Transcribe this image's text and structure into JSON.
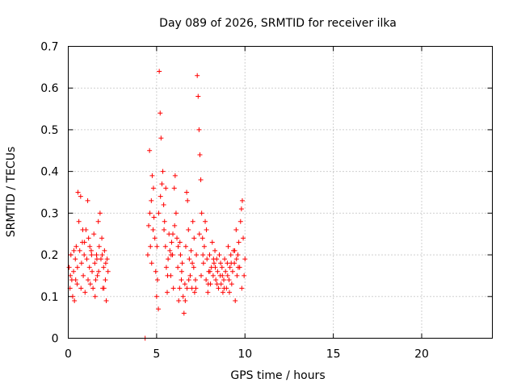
{
  "chart_data": {
    "type": "scatter",
    "title": "Day 089 of 2026, SRMTID for receiver ilka",
    "xlabel": "GPS time / hours",
    "ylabel": "SRMTID / TECUs",
    "xlim": [
      0,
      24
    ],
    "ylim": [
      0,
      0.7
    ],
    "x_ticks": [
      0,
      5,
      10,
      15,
      20
    ],
    "x_tick_labels": [
      "0",
      "5",
      "10",
      "15",
      "20"
    ],
    "y_ticks": [
      0,
      0.1,
      0.2,
      0.3,
      0.4,
      0.5,
      0.6,
      0.7
    ],
    "y_tick_labels": [
      "0",
      "0.1",
      "0.2",
      "0.3",
      "0.4",
      "0.5",
      "0.6",
      "0.7"
    ],
    "grid": true,
    "marker": "+",
    "color": "#ff0000",
    "series": [
      {
        "name": "SRMTID",
        "points": [
          [
            0.05,
            0.17
          ],
          [
            0.1,
            0.12
          ],
          [
            0.15,
            0.2
          ],
          [
            0.2,
            0.14
          ],
          [
            0.25,
            0.1
          ],
          [
            0.3,
            0.16
          ],
          [
            0.35,
            0.09
          ],
          [
            0.4,
            0.19
          ],
          [
            0.45,
            0.22
          ],
          [
            0.5,
            0.13
          ],
          [
            0.55,
            0.35
          ],
          [
            0.6,
            0.28
          ],
          [
            0.65,
            0.21
          ],
          [
            0.7,
            0.34
          ],
          [
            0.75,
            0.18
          ],
          [
            0.8,
            0.23
          ],
          [
            0.85,
            0.15
          ],
          [
            0.9,
            0.2
          ],
          [
            0.95,
            0.11
          ],
          [
            1.0,
            0.26
          ],
          [
            1.05,
            0.19
          ],
          [
            1.1,
            0.33
          ],
          [
            1.15,
            0.24
          ],
          [
            1.2,
            0.17
          ],
          [
            1.25,
            0.13
          ],
          [
            1.3,
            0.21
          ],
          [
            1.35,
            0.16
          ],
          [
            1.4,
            0.12
          ],
          [
            1.45,
            0.25
          ],
          [
            1.5,
            0.18
          ],
          [
            1.55,
            0.14
          ],
          [
            1.6,
            0.2
          ],
          [
            1.65,
            0.15
          ],
          [
            1.7,
            0.28
          ],
          [
            1.75,
            0.22
          ],
          [
            1.8,
            0.3
          ],
          [
            1.85,
            0.19
          ],
          [
            1.9,
            0.24
          ],
          [
            1.95,
            0.12
          ],
          [
            2.0,
            0.17
          ],
          [
            2.05,
            0.21
          ],
          [
            2.1,
            0.14
          ],
          [
            2.15,
            0.09
          ],
          [
            2.2,
            0.19
          ],
          [
            2.25,
            0.16
          ],
          [
            0.12,
            0.15
          ],
          [
            0.32,
            0.21
          ],
          [
            0.52,
            0.17
          ],
          [
            0.72,
            0.12
          ],
          [
            0.92,
            0.23
          ],
          [
            1.12,
            0.14
          ],
          [
            1.32,
            0.2
          ],
          [
            1.52,
            0.1
          ],
          [
            1.72,
            0.16
          ],
          [
            1.92,
            0.2
          ],
          [
            2.12,
            0.18
          ],
          [
            0.42,
            0.14
          ],
          [
            0.82,
            0.26
          ],
          [
            1.22,
            0.22
          ],
          [
            1.62,
            0.19
          ],
          [
            2.02,
            0.12
          ],
          [
            4.35,
            0.0
          ],
          [
            4.5,
            0.2
          ],
          [
            4.55,
            0.27
          ],
          [
            4.6,
            0.45
          ],
          [
            4.65,
            0.22
          ],
          [
            4.7,
            0.33
          ],
          [
            4.75,
            0.39
          ],
          [
            4.8,
            0.26
          ],
          [
            4.85,
            0.29
          ],
          [
            4.9,
            0.24
          ],
          [
            4.95,
            0.16
          ],
          [
            5.0,
            0.1
          ],
          [
            5.05,
            0.14
          ],
          [
            5.1,
            0.07
          ],
          [
            5.15,
            0.64
          ],
          [
            5.2,
            0.54
          ],
          [
            5.25,
            0.48
          ],
          [
            5.3,
            0.37
          ],
          [
            5.35,
            0.4
          ],
          [
            5.4,
            0.32
          ],
          [
            5.45,
            0.28
          ],
          [
            5.5,
            0.22
          ],
          [
            5.55,
            0.17
          ],
          [
            5.6,
            0.11
          ],
          [
            5.65,
            0.19
          ],
          [
            5.7,
            0.25
          ],
          [
            5.75,
            0.21
          ],
          [
            5.8,
            0.15
          ],
          [
            5.85,
            0.23
          ],
          [
            5.9,
            0.2
          ],
          [
            5.95,
            0.12
          ],
          [
            6.0,
            0.36
          ],
          [
            6.05,
            0.39
          ],
          [
            6.1,
            0.3
          ],
          [
            6.15,
            0.24
          ],
          [
            6.2,
            0.17
          ],
          [
            6.25,
            0.09
          ],
          [
            6.3,
            0.12
          ],
          [
            6.35,
            0.2
          ],
          [
            6.4,
            0.14
          ],
          [
            6.45,
            0.18
          ],
          [
            6.5,
            0.1
          ],
          [
            6.55,
            0.06
          ],
          [
            6.6,
            0.13
          ],
          [
            6.65,
            0.22
          ],
          [
            6.7,
            0.35
          ],
          [
            6.75,
            0.33
          ],
          [
            6.8,
            0.26
          ],
          [
            6.85,
            0.19
          ],
          [
            6.9,
            0.15
          ],
          [
            6.95,
            0.21
          ],
          [
            7.0,
            0.12
          ],
          [
            7.05,
            0.28
          ],
          [
            7.1,
            0.17
          ],
          [
            7.15,
            0.11
          ],
          [
            7.2,
            0.14
          ],
          [
            7.25,
            0.2
          ],
          [
            7.3,
            0.63
          ],
          [
            7.35,
            0.58
          ],
          [
            7.4,
            0.5
          ],
          [
            7.45,
            0.44
          ],
          [
            7.5,
            0.38
          ],
          [
            7.55,
            0.3
          ],
          [
            7.6,
            0.24
          ],
          [
            7.65,
            0.18
          ],
          [
            7.7,
            0.22
          ],
          [
            7.75,
            0.28
          ],
          [
            7.8,
            0.14
          ],
          [
            7.85,
            0.19
          ],
          [
            7.9,
            0.11
          ],
          [
            7.95,
            0.16
          ],
          [
            8.0,
            0.2
          ],
          [
            8.05,
            0.13
          ],
          [
            8.1,
            0.17
          ],
          [
            8.15,
            0.23
          ],
          [
            8.2,
            0.15
          ],
          [
            8.25,
            0.18
          ],
          [
            8.3,
            0.21
          ],
          [
            8.35,
            0.14
          ],
          [
            8.4,
            0.19
          ],
          [
            8.45,
            0.16
          ],
          [
            8.5,
            0.12
          ],
          [
            8.55,
            0.2
          ],
          [
            8.6,
            0.15
          ],
          [
            8.65,
            0.13
          ],
          [
            8.7,
            0.17
          ],
          [
            8.75,
            0.11
          ],
          [
            8.8,
            0.14
          ],
          [
            8.85,
            0.19
          ],
          [
            8.9,
            0.16
          ],
          [
            8.95,
            0.12
          ],
          [
            9.0,
            0.18
          ],
          [
            9.05,
            0.22
          ],
          [
            9.1,
            0.14
          ],
          [
            9.15,
            0.17
          ],
          [
            9.2,
            0.2
          ],
          [
            9.25,
            0.13
          ],
          [
            9.3,
            0.16
          ],
          [
            9.35,
            0.21
          ],
          [
            9.4,
            0.18
          ],
          [
            9.45,
            0.09
          ],
          [
            9.5,
            0.26
          ],
          [
            9.55,
            0.15
          ],
          [
            9.6,
            0.2
          ],
          [
            9.65,
            0.23
          ],
          [
            9.7,
            0.17
          ],
          [
            9.75,
            0.28
          ],
          [
            9.8,
            0.31
          ],
          [
            9.85,
            0.33
          ],
          [
            9.9,
            0.24
          ],
          [
            9.95,
            0.15
          ],
          [
            10.0,
            0.19
          ],
          [
            4.62,
            0.3
          ],
          [
            4.82,
            0.36
          ],
          [
            5.02,
            0.22
          ],
          [
            5.22,
            0.34
          ],
          [
            5.42,
            0.26
          ],
          [
            5.62,
            0.15
          ],
          [
            5.82,
            0.2
          ],
          [
            6.02,
            0.27
          ],
          [
            6.22,
            0.22
          ],
          [
            6.42,
            0.16
          ],
          [
            6.62,
            0.09
          ],
          [
            6.82,
            0.14
          ],
          [
            7.02,
            0.18
          ],
          [
            7.22,
            0.12
          ],
          [
            7.42,
            0.25
          ],
          [
            7.62,
            0.2
          ],
          [
            7.82,
            0.26
          ],
          [
            8.02,
            0.16
          ],
          [
            8.22,
            0.19
          ],
          [
            8.42,
            0.13
          ],
          [
            8.62,
            0.18
          ],
          [
            8.82,
            0.12
          ],
          [
            9.02,
            0.15
          ],
          [
            9.22,
            0.18
          ],
          [
            9.42,
            0.21
          ],
          [
            9.62,
            0.17
          ],
          [
            9.82,
            0.12
          ],
          [
            4.72,
            0.18
          ],
          [
            5.12,
            0.3
          ],
          [
            5.52,
            0.36
          ],
          [
            5.92,
            0.25
          ],
          [
            6.32,
            0.23
          ],
          [
            6.72,
            0.12
          ],
          [
            7.12,
            0.24
          ],
          [
            7.52,
            0.15
          ],
          [
            7.92,
            0.13
          ],
          [
            8.32,
            0.17
          ],
          [
            8.72,
            0.15
          ],
          [
            9.12,
            0.11
          ],
          [
            9.52,
            0.19
          ]
        ]
      }
    ]
  }
}
